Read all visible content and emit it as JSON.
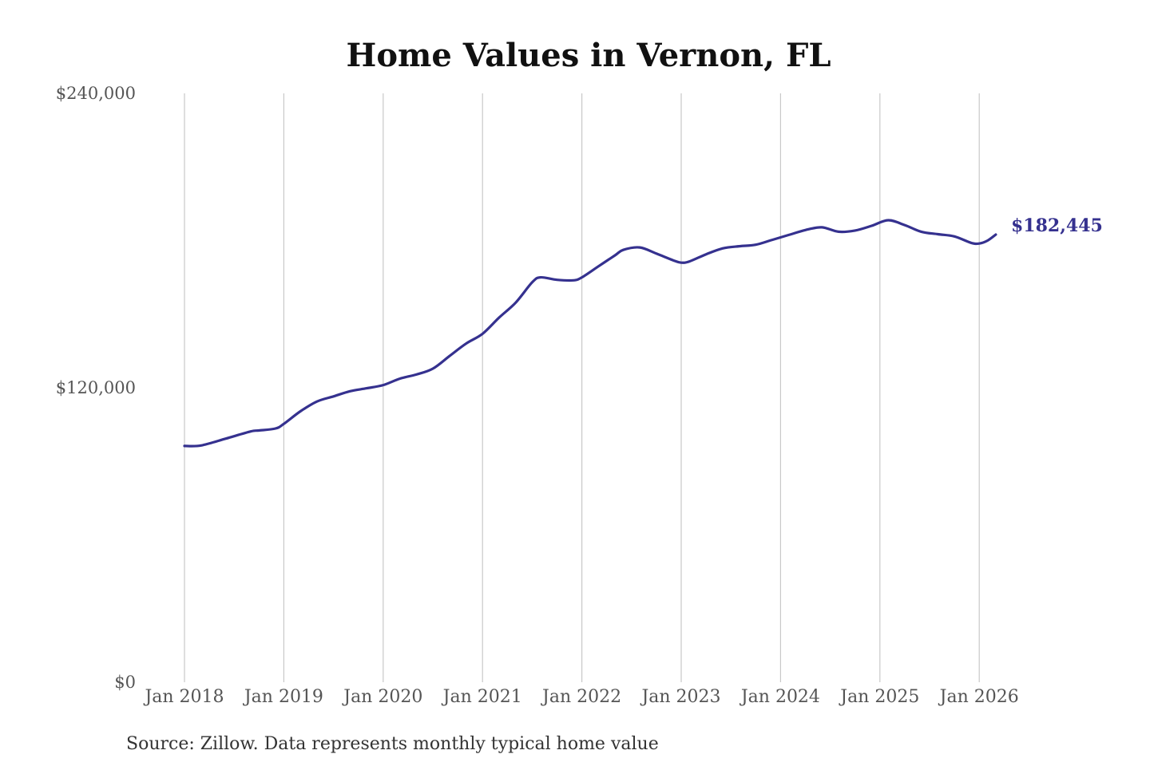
{
  "chart_data": {
    "type": "line",
    "title": "Home Values in Vernon, FL",
    "source": "Source: Zillow. Data represents monthly typical home value",
    "ylim": [
      0,
      240000
    ],
    "y_ticks": [
      {
        "value": 0,
        "label": "$0"
      },
      {
        "value": 120000,
        "label": "$120,000"
      },
      {
        "value": 240000,
        "label": "$240,000"
      }
    ],
    "x_ticks": [
      {
        "value": "2018-01",
        "label": "Jan 2018"
      },
      {
        "value": "2019-01",
        "label": "Jan 2019"
      },
      {
        "value": "2020-01",
        "label": "Jan 2020"
      },
      {
        "value": "2021-01",
        "label": "Jan 2021"
      },
      {
        "value": "2022-01",
        "label": "Jan 2022"
      },
      {
        "value": "2023-01",
        "label": "Jan 2023"
      },
      {
        "value": "2024-01",
        "label": "Jan 2024"
      },
      {
        "value": "2025-01",
        "label": "Jan 2025"
      },
      {
        "value": "2026-01",
        "label": "Jan 2026"
      }
    ],
    "grid": "vertical",
    "line_color": "#35318f",
    "end_label": "$182,445",
    "series": [
      {
        "points": [
          [
            "2018-01",
            96300
          ],
          [
            "2018-03",
            96500
          ],
          [
            "2018-06",
            99300
          ],
          [
            "2018-09",
            102200
          ],
          [
            "2018-10",
            102600
          ],
          [
            "2018-12",
            103400
          ],
          [
            "2019-01",
            105300
          ],
          [
            "2019-03",
            110400
          ],
          [
            "2019-05",
            114400
          ],
          [
            "2019-07",
            116500
          ],
          [
            "2019-09",
            118600
          ],
          [
            "2019-11",
            119800
          ],
          [
            "2020-01",
            121100
          ],
          [
            "2020-03",
            123700
          ],
          [
            "2020-05",
            125400
          ],
          [
            "2020-07",
            127800
          ],
          [
            "2020-09",
            132900
          ],
          [
            "2020-11",
            138000
          ],
          [
            "2021-01",
            142000
          ],
          [
            "2021-03",
            148600
          ],
          [
            "2021-05",
            154700
          ],
          [
            "2021-07",
            163000
          ],
          [
            "2021-08",
            165000
          ],
          [
            "2021-10",
            164000
          ],
          [
            "2021-12",
            163800
          ],
          [
            "2022-01",
            165000
          ],
          [
            "2022-03",
            169500
          ],
          [
            "2022-05",
            174000
          ],
          [
            "2022-06",
            176200
          ],
          [
            "2022-08",
            177200
          ],
          [
            "2022-10",
            174700
          ],
          [
            "2022-12",
            172000
          ],
          [
            "2023-01",
            171000
          ],
          [
            "2023-02",
            171500
          ],
          [
            "2023-04",
            174400
          ],
          [
            "2023-06",
            176800
          ],
          [
            "2023-08",
            177700
          ],
          [
            "2023-10",
            178300
          ],
          [
            "2023-12",
            180300
          ],
          [
            "2024-02",
            182300
          ],
          [
            "2024-04",
            184300
          ],
          [
            "2024-06",
            185400
          ],
          [
            "2024-08",
            183600
          ],
          [
            "2024-10",
            184100
          ],
          [
            "2024-12",
            186000
          ],
          [
            "2025-02",
            188300
          ],
          [
            "2025-04",
            186300
          ],
          [
            "2025-06",
            183600
          ],
          [
            "2025-08",
            182600
          ],
          [
            "2025-10",
            181700
          ],
          [
            "2025-12",
            179100
          ],
          [
            "2026-01",
            178800
          ],
          [
            "2026-02",
            180000
          ],
          [
            "2026-03",
            182445
          ]
        ]
      }
    ]
  }
}
